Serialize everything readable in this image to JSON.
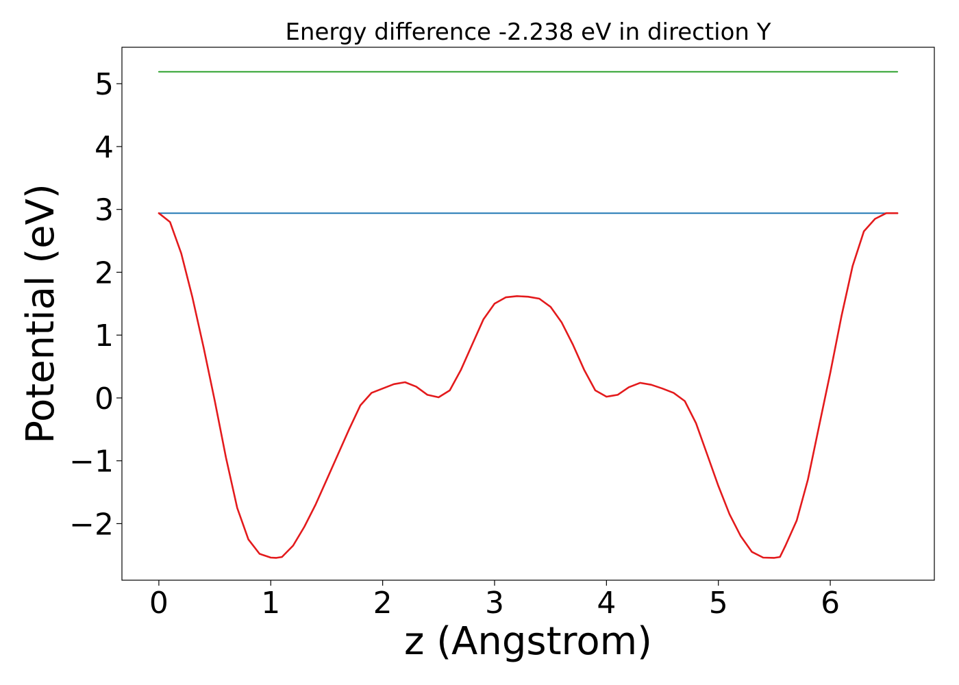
{
  "chart_data": {
    "type": "line",
    "title": "Energy difference -2.238 eV in direction Y",
    "xlabel": "z (Angstrom)",
    "ylabel": "Potential (eV)",
    "xlim": [
      -0.33,
      6.93
    ],
    "ylim": [
      -2.9,
      5.58
    ],
    "xticks": [
      0,
      1,
      2,
      3,
      4,
      5,
      6
    ],
    "yticks": [
      -2,
      -1,
      0,
      1,
      2,
      3,
      4,
      5
    ],
    "xtick_labels": [
      "0",
      "1",
      "2",
      "3",
      "4",
      "5",
      "6"
    ],
    "ytick_labels": [
      "−2",
      "−1",
      "0",
      "1",
      "2",
      "3",
      "4",
      "5"
    ],
    "grid": false,
    "legend": "none",
    "series": [
      {
        "color": "#e31a1c",
        "x": [
          0,
          0.1,
          0.2,
          0.3,
          0.4,
          0.5,
          0.6,
          0.7,
          0.8,
          0.9,
          1.0,
          1.05,
          1.1,
          1.2,
          1.3,
          1.4,
          1.5,
          1.6,
          1.7,
          1.8,
          1.9,
          2.0,
          2.1,
          2.2,
          2.3,
          2.4,
          2.5,
          2.6,
          2.7,
          2.8,
          2.9,
          3.0,
          3.1,
          3.2,
          3.3,
          3.4,
          3.5,
          3.6,
          3.7,
          3.8,
          3.9,
          4.0,
          4.1,
          4.2,
          4.3,
          4.4,
          4.5,
          4.6,
          4.7,
          4.8,
          4.9,
          5.0,
          5.1,
          5.2,
          5.3,
          5.4,
          5.5,
          5.55,
          5.6,
          5.7,
          5.8,
          5.9,
          6.0,
          6.1,
          6.2,
          6.3,
          6.4,
          6.5,
          6.6
        ],
        "y": [
          2.94,
          2.8,
          2.3,
          1.6,
          0.8,
          -0.05,
          -0.95,
          -1.75,
          -2.25,
          -2.48,
          -2.54,
          -2.545,
          -2.53,
          -2.35,
          -2.05,
          -1.7,
          -1.3,
          -0.9,
          -0.5,
          -0.12,
          0.08,
          0.15,
          0.22,
          0.25,
          0.18,
          0.05,
          0.01,
          0.12,
          0.45,
          0.85,
          1.25,
          1.5,
          1.6,
          1.62,
          1.61,
          1.58,
          1.45,
          1.2,
          0.85,
          0.45,
          0.12,
          0.02,
          0.05,
          0.17,
          0.24,
          0.21,
          0.15,
          0.08,
          -0.05,
          -0.4,
          -0.9,
          -1.4,
          -1.85,
          -2.2,
          -2.45,
          -2.54,
          -2.545,
          -2.53,
          -2.35,
          -1.95,
          -1.3,
          -0.45,
          0.4,
          1.3,
          2.1,
          2.65,
          2.85,
          2.94,
          2.94
        ]
      },
      {
        "color": "#1f77b4",
        "x": [
          0,
          6.6
        ],
        "y": [
          2.94,
          2.94
        ]
      },
      {
        "color": "#2ca02c",
        "x": [
          0,
          6.6
        ],
        "y": [
          5.19,
          5.19
        ]
      }
    ]
  }
}
